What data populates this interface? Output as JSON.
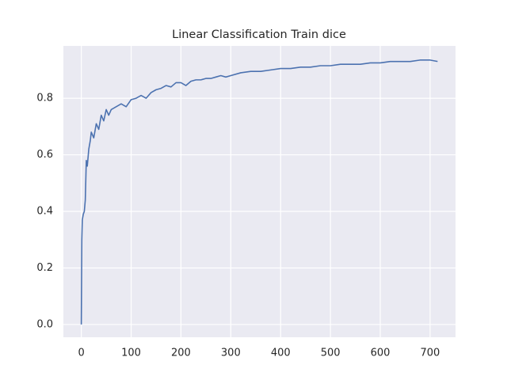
{
  "chart_data": {
    "type": "line",
    "title": "Linear Classification Train dice",
    "x": [
      0,
      1,
      2,
      4,
      6,
      8,
      10,
      12,
      15,
      18,
      20,
      25,
      30,
      35,
      40,
      45,
      50,
      55,
      60,
      70,
      80,
      90,
      100,
      110,
      120,
      130,
      140,
      150,
      160,
      170,
      180,
      190,
      200,
      210,
      220,
      230,
      240,
      250,
      260,
      270,
      280,
      290,
      300,
      320,
      340,
      360,
      380,
      400,
      420,
      440,
      460,
      480,
      500,
      520,
      540,
      560,
      580,
      600,
      620,
      640,
      660,
      680,
      700,
      715
    ],
    "values": [
      0,
      0.3,
      0.37,
      0.39,
      0.4,
      0.44,
      0.58,
      0.56,
      0.62,
      0.65,
      0.68,
      0.66,
      0.71,
      0.69,
      0.74,
      0.72,
      0.76,
      0.74,
      0.76,
      0.77,
      0.78,
      0.77,
      0.795,
      0.8,
      0.81,
      0.8,
      0.82,
      0.83,
      0.835,
      0.845,
      0.84,
      0.855,
      0.855,
      0.845,
      0.86,
      0.865,
      0.865,
      0.87,
      0.87,
      0.875,
      0.88,
      0.875,
      0.88,
      0.89,
      0.895,
      0.895,
      0.9,
      0.905,
      0.905,
      0.91,
      0.91,
      0.915,
      0.915,
      0.92,
      0.92,
      0.92,
      0.925,
      0.925,
      0.93,
      0.93,
      0.93,
      0.935,
      0.935,
      0.93
    ],
    "color": "#4c72b0",
    "xlim": [
      -36,
      751
    ],
    "ylim": [
      -0.045,
      0.985
    ],
    "xticks": [
      0,
      100,
      200,
      300,
      400,
      500,
      600,
      700
    ],
    "yticks": [
      {
        "value": 0,
        "label": "0.0"
      },
      0.2,
      0.4,
      0.6,
      0.8
    ],
    "grid": true
  }
}
